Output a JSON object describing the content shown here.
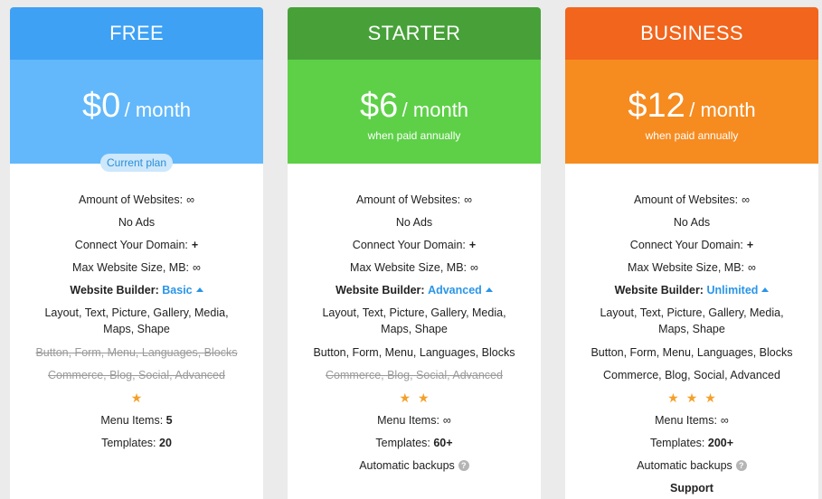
{
  "plans": [
    {
      "name": "FREE",
      "head_color": "#3ea1f4",
      "price_color": "#62b8fb",
      "amount": "$0",
      "period": "/ month",
      "note": "",
      "badge": "Current plan",
      "domains_label": "Amount of Websites:",
      "domains_value": "∞",
      "ads": "No Ads",
      "connect_label": "Connect Your Domain:",
      "connect_value": "+",
      "size_label": "Max Website Size, MB:",
      "size_value": "∞",
      "builder_label": "Website Builder:",
      "builder_value": "Basic",
      "layout_features": "Layout, Text, Picture, Gallery, Media, Maps, Shape",
      "button_features": "Button, Form, Menu, Languages, Blocks",
      "commerce_features": "Commerce, Blog, Social, Advanced",
      "stars": 1,
      "menu_label": "Menu Items:",
      "menu_value": "5",
      "templates_label": "Templates:",
      "templates_value": "20"
    },
    {
      "name": "STARTER",
      "head_color": "#47a138",
      "price_color": "#5dd047",
      "amount": "$6",
      "period": "/ month",
      "note": "when paid annually",
      "domains_label": "Amount of Websites:",
      "domains_value": "∞",
      "ads": "No Ads",
      "connect_label": "Connect Your Domain:",
      "connect_value": "+",
      "size_label": "Max Website Size, MB:",
      "size_value": "∞",
      "builder_label": "Website Builder:",
      "builder_value": "Advanced",
      "layout_features": "Layout, Text, Picture, Gallery, Media, Maps, Shape",
      "button_features": "Button, Form, Menu, Languages, Blocks",
      "commerce_features": "Commerce, Blog, Social, Advanced",
      "stars": 2,
      "menu_label": "Menu Items:",
      "menu_value": "∞",
      "templates_label": "Templates:",
      "templates_value": "60+",
      "backups_label": "Automatic backups"
    },
    {
      "name": "BUSINESS",
      "head_color": "#f1651c",
      "price_color": "#f68b20",
      "amount": "$12",
      "period": "/ month",
      "note": "when paid annually",
      "domains_label": "Amount of Websites:",
      "domains_value": "∞",
      "ads": "No Ads",
      "connect_label": "Connect Your Domain:",
      "connect_value": "+",
      "size_label": "Max Website Size, MB:",
      "size_value": "∞",
      "builder_label": "Website Builder:",
      "builder_value": "Unlimited",
      "layout_features": "Layout, Text, Picture, Gallery, Media, Maps, Shape",
      "button_features": "Button, Form, Menu, Languages, Blocks",
      "commerce_features": "Commerce, Blog, Social, Advanced",
      "stars": 3,
      "menu_label": "Menu Items:",
      "menu_value": "∞",
      "templates_label": "Templates:",
      "templates_value": "200+",
      "backups_label": "Automatic backups",
      "support_label": "Support"
    }
  ]
}
